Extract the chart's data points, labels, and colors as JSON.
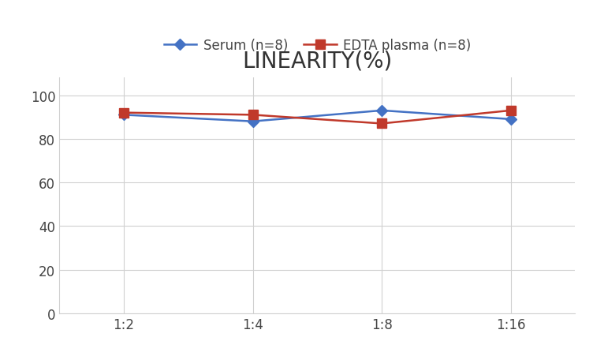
{
  "title": "LINEARITY(%)",
  "x_labels": [
    "1:2",
    "1:4",
    "1:8",
    "1:16"
  ],
  "x_positions": [
    0,
    1,
    2,
    3
  ],
  "serum_label": "Serum (n=8)",
  "edta_label": "EDTA plasma (n=8)",
  "serum_values": [
    91,
    88,
    93,
    89
  ],
  "edta_values": [
    92,
    91,
    87,
    93
  ],
  "serum_color": "#4472C4",
  "edta_color": "#C0392B",
  "ylim": [
    0,
    108
  ],
  "yticks": [
    0,
    20,
    40,
    60,
    80,
    100
  ],
  "title_fontsize": 20,
  "legend_fontsize": 12,
  "tick_fontsize": 12,
  "background_color": "#ffffff",
  "grid_color": "#d0d0d0"
}
